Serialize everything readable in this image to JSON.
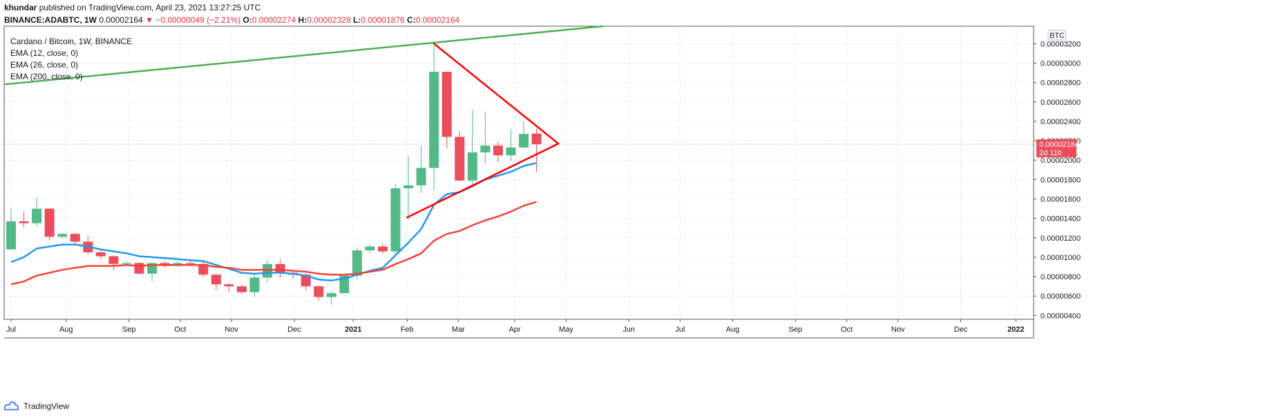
{
  "header": {
    "author": "khundar",
    "published": "published on TradingView.com, April 23, 2021 13:27:25 UTC",
    "symbol": "BINANCE:ADABTC, 1W",
    "last": "0.00002164",
    "change": "−0.00000049 (−2.21%)",
    "o_label": "O:",
    "o": "0.00002274",
    "h_label": "H:",
    "h": "0.00002329",
    "l_label": "L:",
    "l": "0.00001876",
    "c_label": "C:",
    "c": "0.00002164"
  },
  "legend": {
    "title": "Cardano / Bitcoin, 1W, BINANCE",
    "ema1": "EMA (12, close, 0)",
    "ema2": "EMA (26, close, 0)",
    "ema3": "EMA (200, close, 0)"
  },
  "price_label": {
    "value": "0.00002164",
    "countdown": "2d 11h"
  },
  "currency_badge": "BTC",
  "footer": {
    "brand": "TradingView"
  },
  "colors": {
    "up": "#53b987",
    "down": "#eb4d5c",
    "ema12": "#2196f3",
    "ema26": "#f44336",
    "ema200": "#4caf50",
    "trendline": "#ff0000",
    "grid": "#eef1f5"
  },
  "chart_data": {
    "type": "candlestick",
    "title": "Cardano / Bitcoin, 1W, BINANCE",
    "y_scale_unit": "BTC",
    "ylim": [
      3.6e-06,
      3.38e-05
    ],
    "yticks": [
      4e-06,
      6e-06,
      8e-06,
      1e-05,
      1.2e-05,
      1.4e-05,
      1.6e-05,
      1.8e-05,
      2e-05,
      2.2e-05,
      2.4e-05,
      2.6e-05,
      2.8e-05,
      3e-05,
      3.2e-05
    ],
    "ytick_labels": [
      "0.00000400",
      "0.00000600",
      "0.00000800",
      "0.00001000",
      "0.00001200",
      "0.00001400",
      "0.00001600",
      "0.00001800",
      "0.00002000",
      "0.00002200",
      "0.00002400",
      "0.00002600",
      "0.00002800",
      "0.00003000",
      "0.00003200"
    ],
    "x_labels": [
      {
        "label": "Jul",
        "week": 0
      },
      {
        "label": "Aug",
        "week": 4.3
      },
      {
        "label": "Sep",
        "week": 9.2
      },
      {
        "label": "Oct",
        "week": 13.2
      },
      {
        "label": "Nov",
        "week": 17.2
      },
      {
        "label": "Dec",
        "week": 22.1
      },
      {
        "label": "2021",
        "week": 26.7
      },
      {
        "label": "Feb",
        "week": 30.9
      },
      {
        "label": "Mar",
        "week": 34.9
      },
      {
        "label": "Apr",
        "week": 39.3
      },
      {
        "label": "May",
        "week": 43.3
      },
      {
        "label": "Jun",
        "week": 48.2
      },
      {
        "label": "Jul",
        "week": 52.2
      },
      {
        "label": "Aug",
        "week": 56.3
      },
      {
        "label": "Sep",
        "week": 61.2
      },
      {
        "label": "Oct",
        "week": 65.2
      },
      {
        "label": "Nov",
        "week": 69.2
      },
      {
        "label": "Dec",
        "week": 74.1
      },
      {
        "label": "2022",
        "week": 78.4
      }
    ],
    "candles": [
      {
        "o": 1.08e-05,
        "h": 1.5e-05,
        "l": 1.08e-05,
        "c": 1.37e-05
      },
      {
        "o": 1.37e-05,
        "h": 1.47e-05,
        "l": 1.31e-05,
        "c": 1.35e-05
      },
      {
        "o": 1.35e-05,
        "h": 1.61e-05,
        "l": 1.32e-05,
        "c": 1.5e-05
      },
      {
        "o": 1.5e-05,
        "h": 1.5e-05,
        "l": 1.17e-05,
        "c": 1.21e-05
      },
      {
        "o": 1.21e-05,
        "h": 1.25e-05,
        "l": 1.19e-05,
        "c": 1.24e-05
      },
      {
        "o": 1.24e-05,
        "h": 1.25e-05,
        "l": 1.14e-05,
        "c": 1.16e-05
      },
      {
        "o": 1.16e-05,
        "h": 1.22e-05,
        "l": 1.03e-05,
        "c": 1.05e-05
      },
      {
        "o": 1.05e-05,
        "h": 1.08e-05,
        "l": 9.8e-06,
        "c": 1.01e-05
      },
      {
        "o": 1.01e-05,
        "h": 1.02e-05,
        "l": 8.7e-06,
        "c": 9.3e-06
      },
      {
        "o": 9.3e-06,
        "h": 9.6e-06,
        "l": 9.1e-06,
        "c": 9.4e-06
      },
      {
        "o": 9.4e-06,
        "h": 9.5e-06,
        "l": 8.3e-06,
        "c": 8.3e-06
      },
      {
        "o": 8.3e-06,
        "h": 9.5e-06,
        "l": 7.5e-06,
        "c": 9.4e-06
      },
      {
        "o": 9.4e-06,
        "h": 9.6e-06,
        "l": 8.9e-06,
        "c": 9.1e-06
      },
      {
        "o": 9.1e-06,
        "h": 9.6e-06,
        "l": 9e-06,
        "c": 9.4e-06
      },
      {
        "o": 9.4e-06,
        "h": 9.7e-06,
        "l": 9.2e-06,
        "c": 9.3e-06
      },
      {
        "o": 9.3e-06,
        "h": 9.6e-06,
        "l": 8e-06,
        "c": 8.2e-06
      },
      {
        "o": 8.2e-06,
        "h": 8.3e-06,
        "l": 6.6e-06,
        "c": 7.2e-06
      },
      {
        "o": 7.2e-06,
        "h": 7.3e-06,
        "l": 6.4e-06,
        "c": 7e-06
      },
      {
        "o": 7e-06,
        "h": 7.2e-06,
        "l": 6.2e-06,
        "c": 6.4e-06
      },
      {
        "o": 6.4e-06,
        "h": 8.2e-06,
        "l": 5.9e-06,
        "c": 7.9e-06
      },
      {
        "o": 7.9e-06,
        "h": 9.7e-06,
        "l": 7.4e-06,
        "c": 9.3e-06
      },
      {
        "o": 9.3e-06,
        "h": 9.8e-06,
        "l": 7.9e-06,
        "c": 8.4e-06
      },
      {
        "o": 8.4e-06,
        "h": 8.5e-06,
        "l": 7.8e-06,
        "c": 8.2e-06
      },
      {
        "o": 8.2e-06,
        "h": 8.3e-06,
        "l": 6.6e-06,
        "c": 7e-06
      },
      {
        "o": 7e-06,
        "h": 7.1e-06,
        "l": 5.5e-06,
        "c": 5.9e-06
      },
      {
        "o": 5.9e-06,
        "h": 6.5e-06,
        "l": 5.1e-06,
        "c": 6.3e-06
      },
      {
        "o": 6.3e-06,
        "h": 8.3e-06,
        "l": 6.3e-06,
        "c": 8.1e-06
      },
      {
        "o": 8.1e-06,
        "h": 1.1e-05,
        "l": 7.7e-06,
        "c": 1.07e-05
      },
      {
        "o": 1.07e-05,
        "h": 1.13e-05,
        "l": 1.04e-05,
        "c": 1.11e-05
      },
      {
        "o": 1.11e-05,
        "h": 1.14e-05,
        "l": 1.04e-05,
        "c": 1.06e-05
      },
      {
        "o": 1.06e-05,
        "h": 1.75e-05,
        "l": 1.03e-05,
        "c": 1.71e-05
      },
      {
        "o": 1.71e-05,
        "h": 2.05e-05,
        "l": 1.39e-05,
        "c": 1.74e-05
      },
      {
        "o": 1.74e-05,
        "h": 2.15e-05,
        "l": 1.66e-05,
        "c": 1.92e-05
      },
      {
        "o": 1.92e-05,
        "h": 3.18e-05,
        "l": 1.69e-05,
        "c": 2.91e-05
      },
      {
        "o": 2.91e-05,
        "h": 2.91e-05,
        "l": 2.12e-05,
        "c": 2.24e-05
      },
      {
        "o": 2.24e-05,
        "h": 2.3e-05,
        "l": 1.78e-05,
        "c": 1.79e-05
      },
      {
        "o": 1.79e-05,
        "h": 2.52e-05,
        "l": 1.75e-05,
        "c": 2.08e-05
      },
      {
        "o": 2.08e-05,
        "h": 2.5e-05,
        "l": 1.96e-05,
        "c": 2.15e-05
      },
      {
        "o": 2.15e-05,
        "h": 2.19e-05,
        "l": 1.98e-05,
        "c": 2.05e-05
      },
      {
        "o": 2.05e-05,
        "h": 2.32e-05,
        "l": 1.99e-05,
        "c": 2.13e-05
      },
      {
        "o": 2.13e-05,
        "h": 2.4e-05,
        "l": 2.12e-05,
        "c": 2.27e-05
      },
      {
        "o": 2.274e-05,
        "h": 2.329e-05,
        "l": 1.876e-05,
        "c": 2.164e-05
      }
    ],
    "series": [
      {
        "name": "EMA (12, close, 0)",
        "indicator": "ema12",
        "values": [
          9.5e-06,
          1e-05,
          1.09e-05,
          1.11e-05,
          1.13e-05,
          1.13e-05,
          1.11e-05,
          1.08e-05,
          1.06e-05,
          1.04e-05,
          1.01e-05,
          1e-05,
          9.9e-06,
          9.8e-06,
          9.7e-06,
          9.6e-06,
          9.2e-06,
          8.8e-06,
          8.4e-06,
          8.3e-06,
          8.4e-06,
          8.4e-06,
          8.3e-06,
          8.1e-06,
          7.7e-06,
          7.6e-06,
          7.8e-06,
          8.2e-06,
          8.6e-06,
          8.9e-06,
          1.02e-05,
          1.15e-05,
          1.29e-05,
          1.54e-05,
          1.65e-05,
          1.67e-05,
          1.73e-05,
          1.8e-05,
          1.84e-05,
          1.88e-05,
          1.94e-05,
          1.97e-05
        ]
      },
      {
        "name": "EMA (26, close, 0)",
        "indicator": "ema26",
        "values": [
          7.2e-06,
          7.5e-06,
          8.1e-06,
          8.4e-06,
          8.7e-06,
          8.9e-06,
          9.1e-06,
          9.1e-06,
          9.1e-06,
          9.2e-06,
          9.1e-06,
          9.2e-06,
          9.2e-06,
          9.2e-06,
          9.2e-06,
          9.2e-06,
          9e-06,
          8.9e-06,
          8.7e-06,
          8.7e-06,
          8.7e-06,
          8.7e-06,
          8.6e-06,
          8.5e-06,
          8.3e-06,
          8.2e-06,
          8.2e-06,
          8.3e-06,
          8.5e-06,
          8.7e-06,
          9.3e-06,
          9.8e-06,
          1.04e-05,
          1.17e-05,
          1.24e-05,
          1.27e-05,
          1.33e-05,
          1.38e-05,
          1.42e-05,
          1.47e-05,
          1.53e-05,
          1.57e-05
        ]
      }
    ],
    "ema200_line": {
      "name": "EMA (200, close, 0)",
      "x": [
        0,
        46.2
      ],
      "y": [
        2.78e-05,
        3.38e-05
      ]
    },
    "trendlines": [
      {
        "from": {
          "week": 33.0,
          "price": 3.2e-05
        },
        "to": {
          "week": 42.7,
          "price": 2.17e-05
        }
      },
      {
        "from": {
          "week": 30.9,
          "price": 1.41e-05
        },
        "to": {
          "week": 42.7,
          "price": 2.17e-05
        }
      }
    ],
    "current_price": 2.164e-05
  }
}
